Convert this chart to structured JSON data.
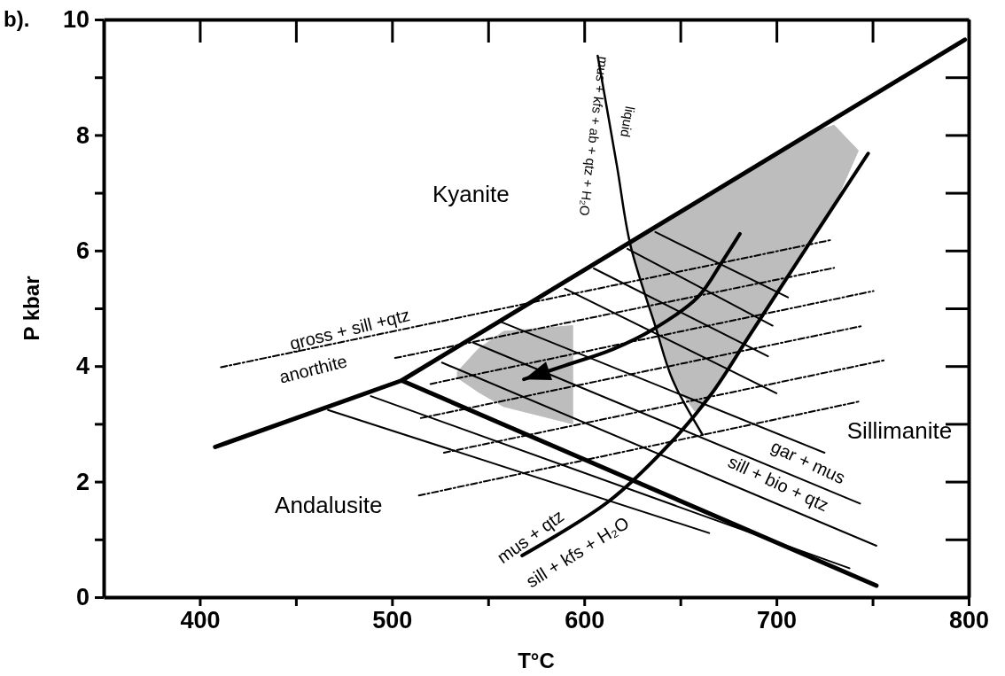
{
  "chart_data": {
    "type": "line",
    "title": "b).",
    "xlabel": "T°C",
    "ylabel": "P kbar",
    "xlim": [
      350,
      800
    ],
    "ylim": [
      0,
      10
    ],
    "xticks": [
      400,
      {
        "value": 450,
        "label": null
      },
      500,
      {
        "value": 550,
        "label": null
      },
      600,
      {
        "value": 650,
        "label": null
      },
      700,
      {
        "value": 750,
        "label": null
      },
      800
    ],
    "yticks": [
      0,
      {
        "value": 1,
        "label": null
      },
      2,
      {
        "value": 3,
        "label": null
      },
      4,
      {
        "value": 5,
        "label": null
      },
      6,
      {
        "value": 7,
        "label": null
      },
      8,
      {
        "value": 9,
        "label": null
      },
      10
    ],
    "series": [
      {
        "color": "#bdbdbd",
        "x": [
          623,
          637,
          646,
          657.5,
          666,
          686,
          700,
          718,
          730,
          742.6
        ],
        "values": [
          null,
          null,
          null,
          null,
          null,
          null,
          null,
          null,
          null,
          null
        ],
        "upper": [
          6.13,
          6.41,
          6.59,
          6.82,
          7.0,
          7.4,
          7.68,
          8.04,
          8.17,
          7.73
        ],
        "lower": [
          6.13,
          4.69,
          3.76,
          3.22,
          3.51,
          4.53,
          5.25,
          6.17,
          6.78,
          7.73
        ]
      },
      {
        "color": "#bdbdbd",
        "x": [
          534,
          545,
          558,
          594
        ],
        "values": [
          null,
          null,
          null,
          null
        ],
        "upper": [
          3.9,
          4.3,
          4.6,
          4.7
        ],
        "lower": [
          3.8,
          3.55,
          3.3,
          3.0
        ]
      },
      {
        "color": "#000000",
        "x": [
          408,
          505,
          798
        ],
        "values": [
          2.6,
          3.75,
          9.65
        ]
      },
      {
        "color": "#000000",
        "x": [
          505,
          752
        ],
        "values": [
          3.75,
          0.2
        ]
      },
      {
        "color": "#000000",
        "x": [
          466.7,
          665
        ],
        "values": [
          3.24,
          1.11
        ]
      },
      {
        "color": "#000000",
        "x": [
          489,
          738
        ],
        "values": [
          3.48,
          0.5
        ]
      },
      {
        "color": "#000000",
        "x": [
          526,
          752
        ],
        "values": [
          4.06,
          0.89
        ]
      },
      {
        "color": "#000000",
        "x": [
          542,
          743.5
        ],
        "values": [
          4.41,
          1.62
        ]
      },
      {
        "color": "#000000",
        "x": [
          557,
          725
        ],
        "values": [
          4.76,
          2.5
        ]
      },
      {
        "color": "#000000",
        "x": [
          590,
          700
        ],
        "values": [
          5.34,
          3.53
        ]
      },
      {
        "color": "#000000",
        "x": [
          605,
          695.6
        ],
        "values": [
          5.69,
          4.17
        ]
      },
      {
        "color": "#000000",
        "x": [
          622.5,
          698
        ],
        "values": [
          6.03,
          4.7
        ]
      },
      {
        "color": "#000000",
        "x": [
          637,
          706
        ],
        "values": [
          6.32,
          5.19
        ]
      },
      {
        "color": "#000000",
        "line_style": "dashed",
        "x": [
          411,
          728
        ],
        "values": [
          3.98,
          6.18
        ]
      },
      {
        "color": "#000000",
        "line_style": "dashed",
        "x": [
          501.6,
          730
        ],
        "values": [
          4.14,
          5.7
        ]
      },
      {
        "color": "#000000",
        "line_style": "dashed",
        "x": [
          520,
          750.5
        ],
        "values": [
          3.69,
          5.3
        ]
      },
      {
        "color": "#000000",
        "line_style": "dashed",
        "x": [
          515,
          744
        ],
        "values": [
          3.1,
          4.69
        ]
      },
      {
        "color": "#000000",
        "line_style": "dashed",
        "x": [
          527,
          756
        ],
        "values": [
          2.5,
          4.1
        ]
      },
      {
        "color": "#000000",
        "line_style": "dashed",
        "x": [
          514,
          743.5
        ],
        "values": [
          1.76,
          3.39
        ]
      },
      {
        "color": "#000000",
        "x": [
          567.7,
          612.8,
          644.9,
          666,
          686,
          718,
          747.7
        ],
        "values": [
          0.72,
          1.66,
          2.67,
          3.51,
          4.53,
          6.17,
          7.68
        ]
      },
      {
        "color": "#000000",
        "x": [
          607,
          617,
          624,
          637,
          646,
          661.6
        ],
        "values": [
          9.37,
          7.47,
          6.1,
          4.69,
          3.76,
          2.81
        ]
      },
      {
        "color": "#000000",
        "x": [
          681,
          672,
          659,
          636,
          614.7,
          590,
          568.6
        ],
        "values": [
          6.29,
          5.82,
          5.19,
          4.64,
          4.29,
          4.01,
          3.77
        ]
      }
    ],
    "annotations": [
      "Kyanite",
      "Andalusite",
      "Sillimanite",
      "gross + sill +qtz",
      "anorthite",
      "gar + mus",
      "sill + bio + qtz",
      "mus + qtz",
      "sill + kfs + H₂O",
      "mus + kfs + ab + qtz + H₂O",
      "liquid"
    ]
  }
}
